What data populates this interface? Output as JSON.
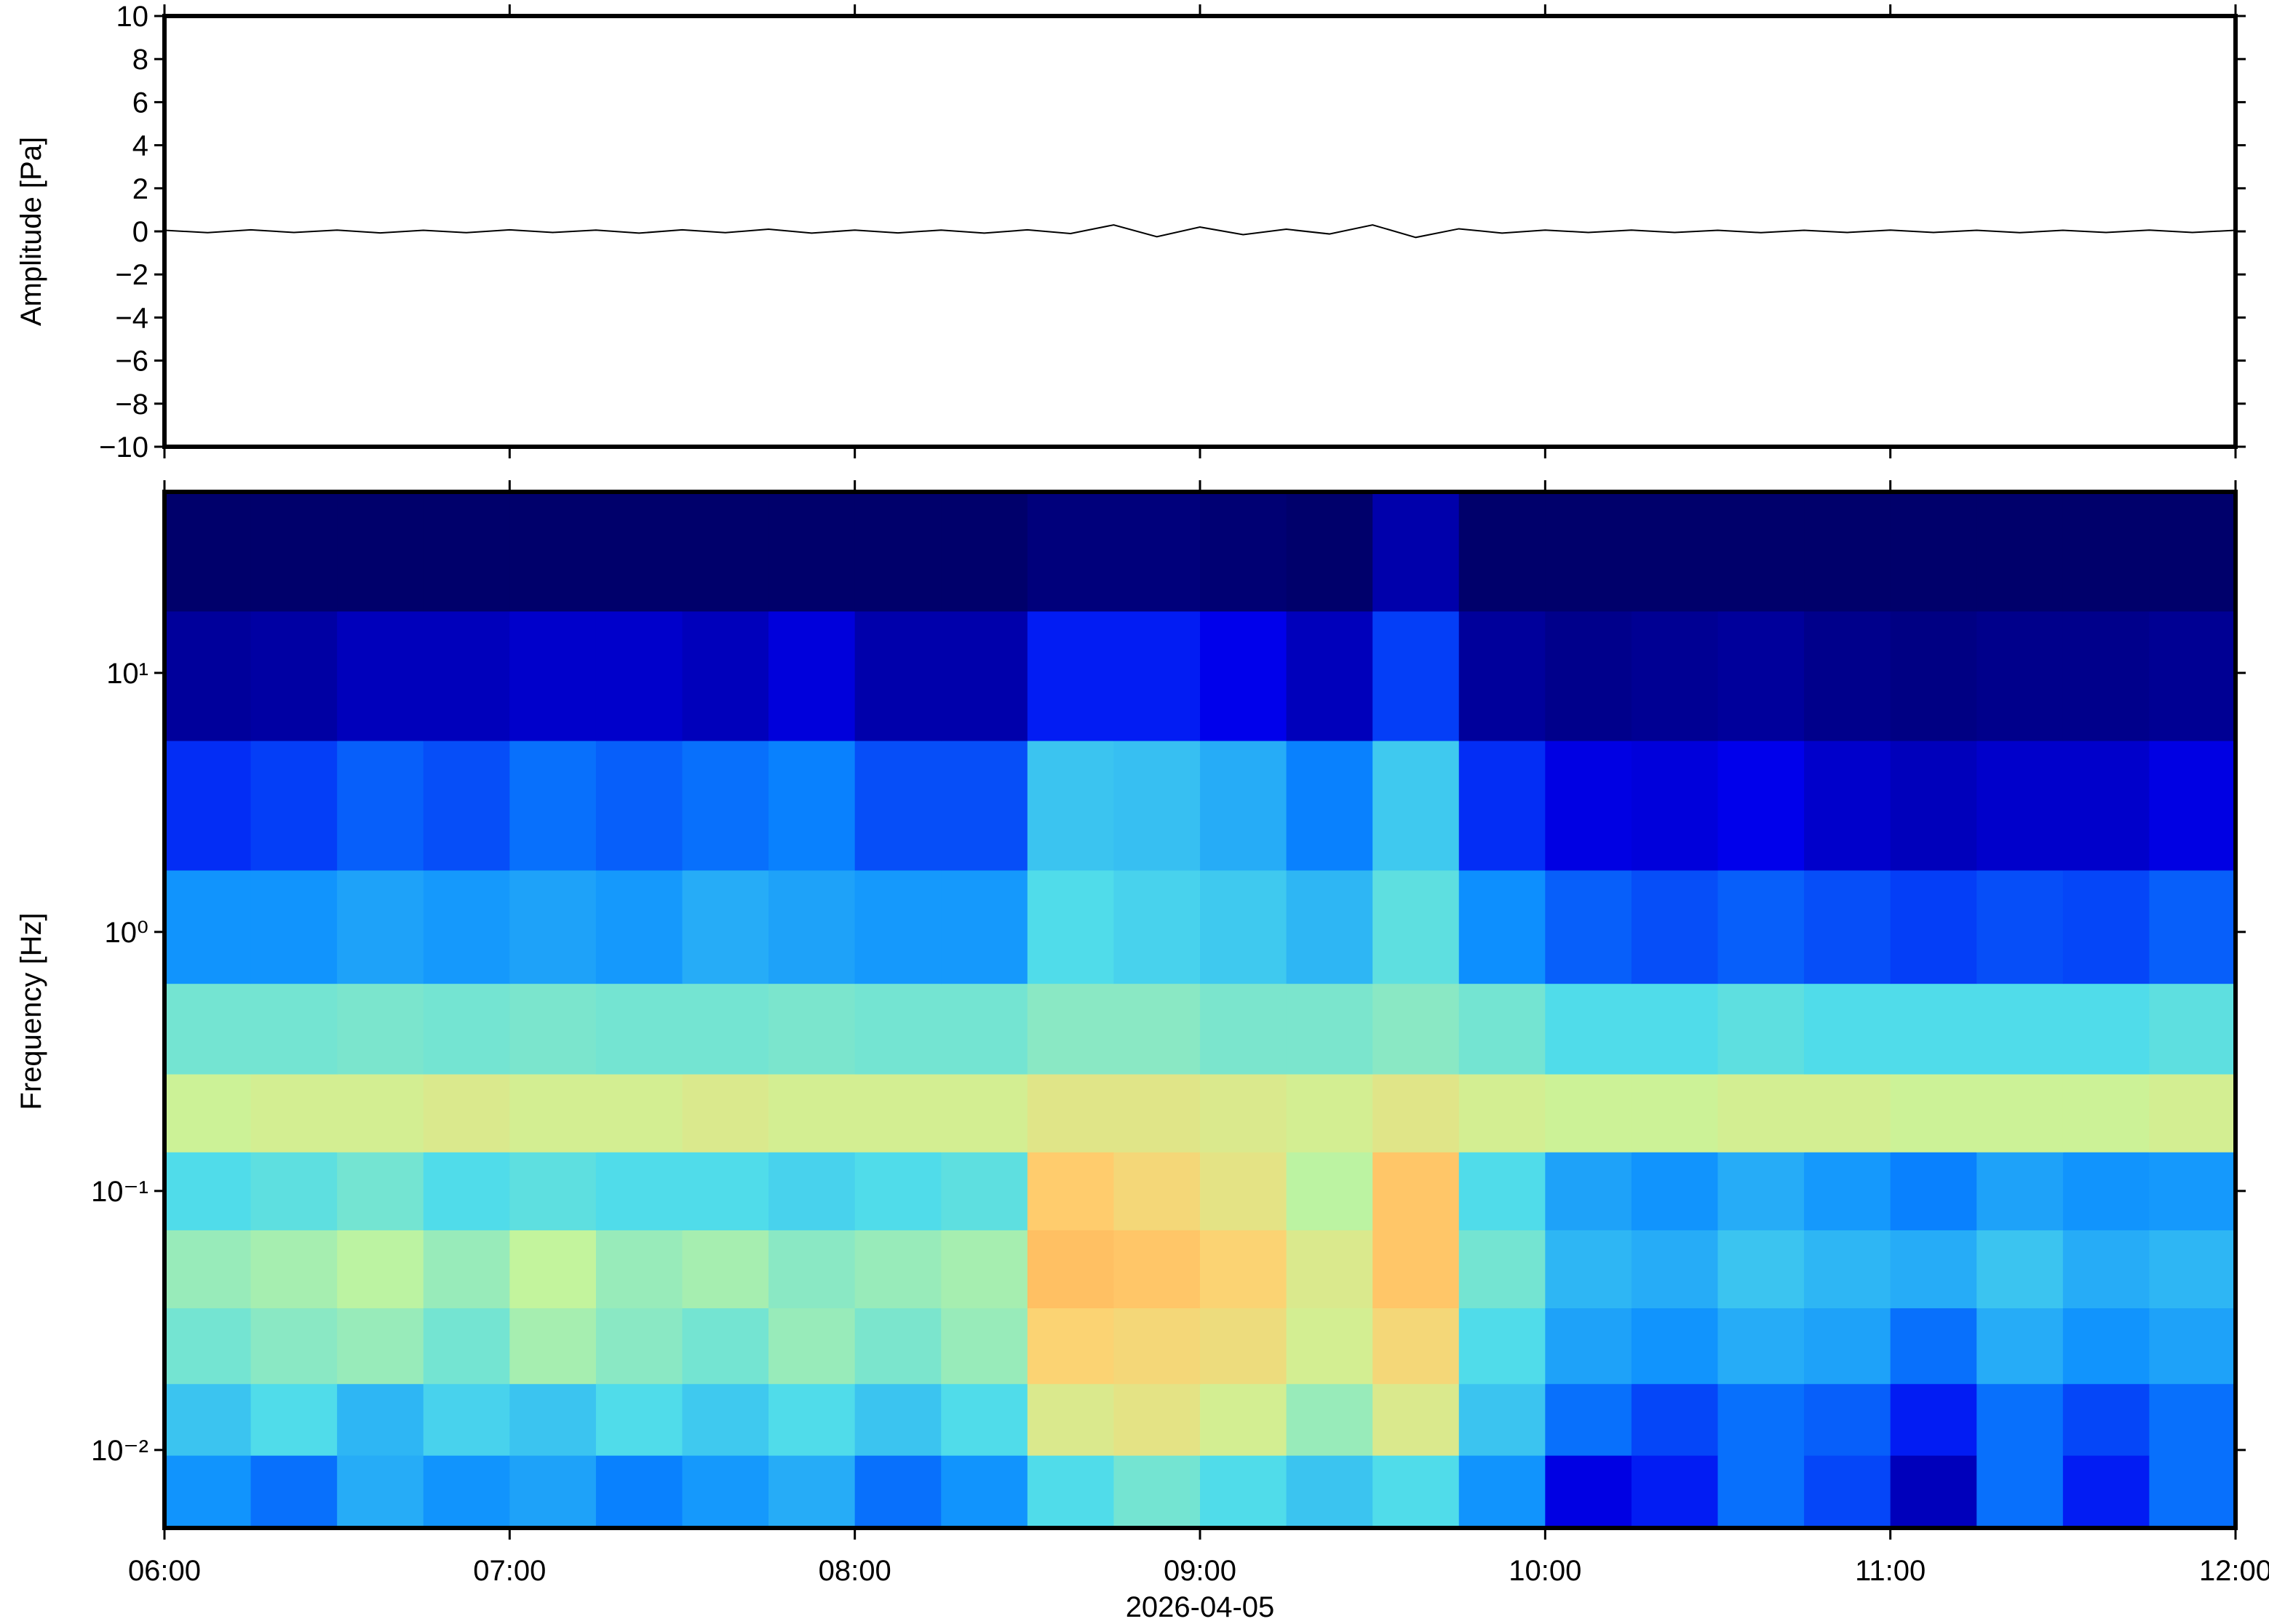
{
  "chart_data": [
    {
      "type": "line",
      "ylabel": "Amplitude [Pa]",
      "color": "#000000",
      "xlim": [
        6,
        12
      ],
      "xticks": [
        6,
        7,
        8,
        9,
        10,
        11,
        12
      ],
      "ylim": [
        -10,
        10
      ],
      "yticks": [
        {
          "value": 10,
          "label": "10"
        },
        {
          "value": 8,
          "label": "8"
        },
        {
          "value": 6,
          "label": "6"
        },
        {
          "value": 4,
          "label": "4"
        },
        {
          "value": 2,
          "label": "2"
        },
        {
          "value": 0,
          "label": "0"
        },
        {
          "value": -2,
          "label": "−2"
        },
        {
          "value": -4,
          "label": "−4"
        },
        {
          "value": -6,
          "label": "−6"
        },
        {
          "value": -8,
          "label": "−8"
        },
        {
          "value": -10,
          "label": "−10"
        }
      ],
      "x": [
        6,
        6.125,
        6.25,
        6.375,
        6.5,
        6.625,
        6.75,
        6.875,
        7,
        7.125,
        7.25,
        7.375,
        7.5,
        7.625,
        7.75,
        7.875,
        8,
        8.125,
        8.25,
        8.375,
        8.5,
        8.625,
        8.75,
        8.875,
        9,
        9.125,
        9.25,
        9.375,
        9.5,
        9.625,
        9.75,
        9.875,
        10,
        10.125,
        10.25,
        10.375,
        10.5,
        10.625,
        10.75,
        10.875,
        11,
        11.125,
        11.25,
        11.375,
        11.5,
        11.625,
        11.75,
        11.875,
        12
      ],
      "values": [
        0.05,
        -0.06,
        0.07,
        -0.05,
        0.06,
        -0.07,
        0.05,
        -0.06,
        0.07,
        -0.05,
        0.06,
        -0.08,
        0.07,
        -0.06,
        0.1,
        -0.08,
        0.06,
        -0.07,
        0.06,
        -0.08,
        0.07,
        -0.1,
        0.3,
        -0.25,
        0.2,
        -0.15,
        0.1,
        -0.12,
        0.3,
        -0.28,
        0.12,
        -0.08,
        0.06,
        -0.05,
        0.06,
        -0.05,
        0.05,
        -0.06,
        0.05,
        -0.05,
        0.06,
        -0.05,
        0.05,
        -0.06,
        0.05,
        -0.05,
        0.06,
        -0.05,
        0.05
      ]
    },
    {
      "type": "heatmap",
      "ylabel": "Frequency [Hz]",
      "xlabel": "2026-04-05",
      "log_y": true,
      "xlim": [
        6,
        12
      ],
      "xticks": [
        {
          "value": 6,
          "label": "06:00"
        },
        {
          "value": 7,
          "label": "07:00"
        },
        {
          "value": 8,
          "label": "08:00"
        },
        {
          "value": 9,
          "label": "09:00"
        },
        {
          "value": 10,
          "label": "10:00"
        },
        {
          "value": 11,
          "label": "11:00"
        },
        {
          "value": 12,
          "label": "12:00"
        }
      ],
      "ylim": [
        0.005,
        50
      ],
      "yticks": [
        {
          "value": 0.01,
          "label": "10⁻²"
        },
        {
          "value": 0.1,
          "label": "10⁻¹"
        },
        {
          "value": 1,
          "label": "10⁰"
        },
        {
          "value": 10,
          "label": "10¹"
        }
      ],
      "colormap": [
        "#00006b",
        "#0000f0",
        "#0a8cff",
        "#50dcea",
        "#c8f59a",
        "#ffd070",
        "#ff6a20"
      ],
      "zlim": [
        0,
        1
      ],
      "x": [
        6.125,
        6.375,
        6.625,
        6.875,
        7.125,
        7.375,
        7.625,
        7.875,
        8.125,
        8.375,
        8.625,
        8.875,
        9.125,
        9.375,
        9.625,
        9.875,
        10.125,
        10.375,
        10.625,
        10.875,
        11.125,
        11.375,
        11.625,
        11.875
      ],
      "y": [
        0.007,
        0.013,
        0.025,
        0.05,
        0.1,
        0.2,
        0.4,
        1,
        3,
        10,
        30
      ],
      "z": [
        [
          0.35,
          0.3,
          0.4,
          0.35,
          0.38,
          0.32,
          0.36,
          0.4,
          0.3,
          0.35,
          0.5,
          0.55,
          0.5,
          0.45,
          0.5,
          0.35,
          0.15,
          0.2,
          0.3,
          0.25,
          0.1,
          0.3,
          0.2,
          0.3
        ],
        [
          0.45,
          0.5,
          0.42,
          0.48,
          0.45,
          0.5,
          0.46,
          0.5,
          0.45,
          0.5,
          0.72,
          0.75,
          0.7,
          0.6,
          0.72,
          0.45,
          0.3,
          0.25,
          0.3,
          0.28,
          0.2,
          0.3,
          0.25,
          0.3
        ],
        [
          0.55,
          0.58,
          0.6,
          0.55,
          0.62,
          0.58,
          0.55,
          0.6,
          0.56,
          0.6,
          0.82,
          0.8,
          0.78,
          0.7,
          0.8,
          0.5,
          0.38,
          0.35,
          0.4,
          0.38,
          0.3,
          0.4,
          0.35,
          0.38
        ],
        [
          0.6,
          0.62,
          0.65,
          0.6,
          0.66,
          0.6,
          0.62,
          0.58,
          0.6,
          0.62,
          0.86,
          0.85,
          0.82,
          0.72,
          0.85,
          0.55,
          0.42,
          0.4,
          0.45,
          0.42,
          0.4,
          0.45,
          0.4,
          0.42
        ],
        [
          0.5,
          0.52,
          0.55,
          0.5,
          0.52,
          0.5,
          0.5,
          0.48,
          0.5,
          0.52,
          0.84,
          0.8,
          0.75,
          0.65,
          0.85,
          0.5,
          0.38,
          0.35,
          0.4,
          0.36,
          0.32,
          0.38,
          0.35,
          0.36
        ],
        [
          0.68,
          0.7,
          0.7,
          0.72,
          0.7,
          0.7,
          0.72,
          0.7,
          0.7,
          0.7,
          0.74,
          0.74,
          0.72,
          0.7,
          0.74,
          0.7,
          0.68,
          0.68,
          0.7,
          0.7,
          0.68,
          0.68,
          0.68,
          0.7
        ],
        [
          0.55,
          0.55,
          0.56,
          0.55,
          0.56,
          0.55,
          0.55,
          0.56,
          0.55,
          0.55,
          0.58,
          0.58,
          0.56,
          0.56,
          0.58,
          0.55,
          0.5,
          0.5,
          0.52,
          0.5,
          0.5,
          0.5,
          0.5,
          0.52
        ],
        [
          0.35,
          0.35,
          0.38,
          0.36,
          0.38,
          0.36,
          0.4,
          0.38,
          0.36,
          0.36,
          0.5,
          0.48,
          0.46,
          0.42,
          0.52,
          0.34,
          0.28,
          0.26,
          0.28,
          0.26,
          0.24,
          0.26,
          0.25,
          0.28
        ],
        [
          0.22,
          0.24,
          0.28,
          0.26,
          0.3,
          0.28,
          0.3,
          0.32,
          0.26,
          0.26,
          0.45,
          0.44,
          0.4,
          0.32,
          0.46,
          0.22,
          0.15,
          0.14,
          0.16,
          0.12,
          0.1,
          0.12,
          0.12,
          0.15
        ],
        [
          0.06,
          0.07,
          0.1,
          0.1,
          0.12,
          0.12,
          0.1,
          0.14,
          0.08,
          0.08,
          0.2,
          0.2,
          0.16,
          0.1,
          0.24,
          0.06,
          0.04,
          0.05,
          0.06,
          0.04,
          0.03,
          0.04,
          0.04,
          0.05
        ],
        [
          0,
          0,
          0,
          0,
          0,
          0,
          0,
          0,
          0,
          0,
          0.02,
          0.02,
          0.01,
          0,
          0.08,
          0,
          0,
          0,
          0,
          0,
          0,
          0,
          0,
          0
        ]
      ]
    }
  ]
}
